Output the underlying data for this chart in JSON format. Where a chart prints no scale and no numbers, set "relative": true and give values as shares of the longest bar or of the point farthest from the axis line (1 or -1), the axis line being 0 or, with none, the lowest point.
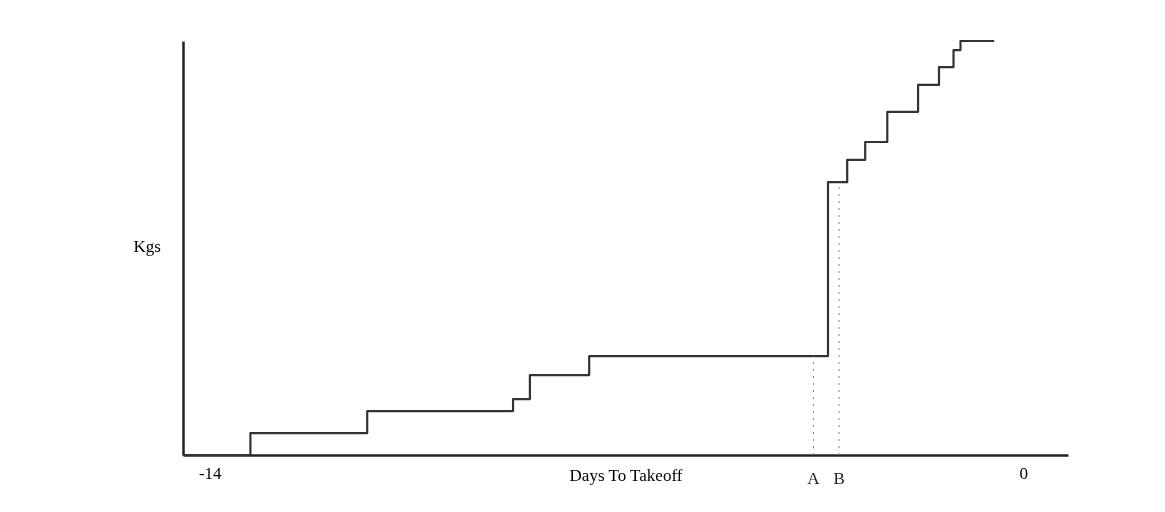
{
  "chart_data": {
    "type": "step",
    "xlabel": "Days To Takeoff",
    "ylabel": "Kgs",
    "relative": true,
    "x": [
      -14.46,
      -13.3,
      -11.29,
      -8.78,
      -8.49,
      -7.47,
      -3.36,
      -3.03,
      -2.72,
      -2.34,
      -1.81,
      -1.45,
      -1.2,
      -1.08,
      -0.5
    ],
    "values": [
      0,
      0.053,
      0.106,
      0.135,
      0.193,
      0.239,
      0.659,
      0.713,
      0.756,
      0.829,
      0.894,
      0.937,
      0.978,
      1,
      1
    ],
    "color": "#333333",
    "xlim": [
      -14.46,
      0.77
    ],
    "xticks": [
      -14,
      0
    ],
    "grid": false,
    "ref_lines": [
      {
        "axis": "x",
        "value": -3.61,
        "label": "A",
        "line_style": "dotted"
      },
      {
        "axis": "x",
        "value": -3.17,
        "label": "B",
        "line_style": "dotted"
      }
    ]
  }
}
